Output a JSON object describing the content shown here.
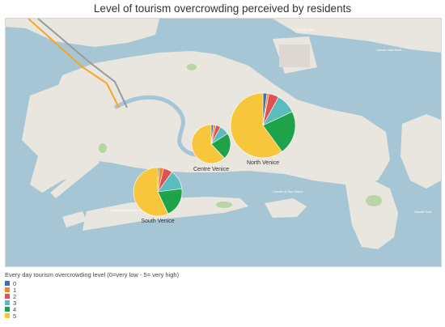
{
  "title": "Level of tourism overcrowding perceived by residents",
  "colors": {
    "water": "#a6c6d6",
    "land": "#e9e6e0",
    "block": "#dcd8d1",
    "green": "#b8d5a6",
    "road": "#f5a623",
    "rail": "#9a9a9a"
  },
  "street_labels": [
    "Canale della Giudecca",
    "Canale di San Marco",
    "Canale Vela Nord",
    "Canale Sud",
    "Canale Nord"
  ],
  "legend": {
    "title": "Every day tourism overcrowding level (0=very low - 5= very high)",
    "items": [
      {
        "label": "0",
        "color": "#3b6fb6"
      },
      {
        "label": "1",
        "color": "#f0892d"
      },
      {
        "label": "2",
        "color": "#e05151"
      },
      {
        "label": "3",
        "color": "#5bbcbc"
      },
      {
        "label": "4",
        "color": "#1ea24a"
      },
      {
        "label": "5",
        "color": "#f8c63b"
      }
    ]
  },
  "chart_data": {
    "type": "pie",
    "levels": [
      "0",
      "1",
      "2",
      "3",
      "4",
      "5"
    ],
    "series": [
      {
        "name": "North Venice",
        "values": [
          2,
          1,
          5,
          10,
          22,
          60
        ]
      },
      {
        "name": "Centre Venice",
        "values": [
          2,
          2,
          4,
          8,
          22,
          62
        ]
      },
      {
        "name": "South Venice",
        "values": [
          1,
          3,
          6,
          13,
          20,
          57
        ]
      }
    ]
  }
}
